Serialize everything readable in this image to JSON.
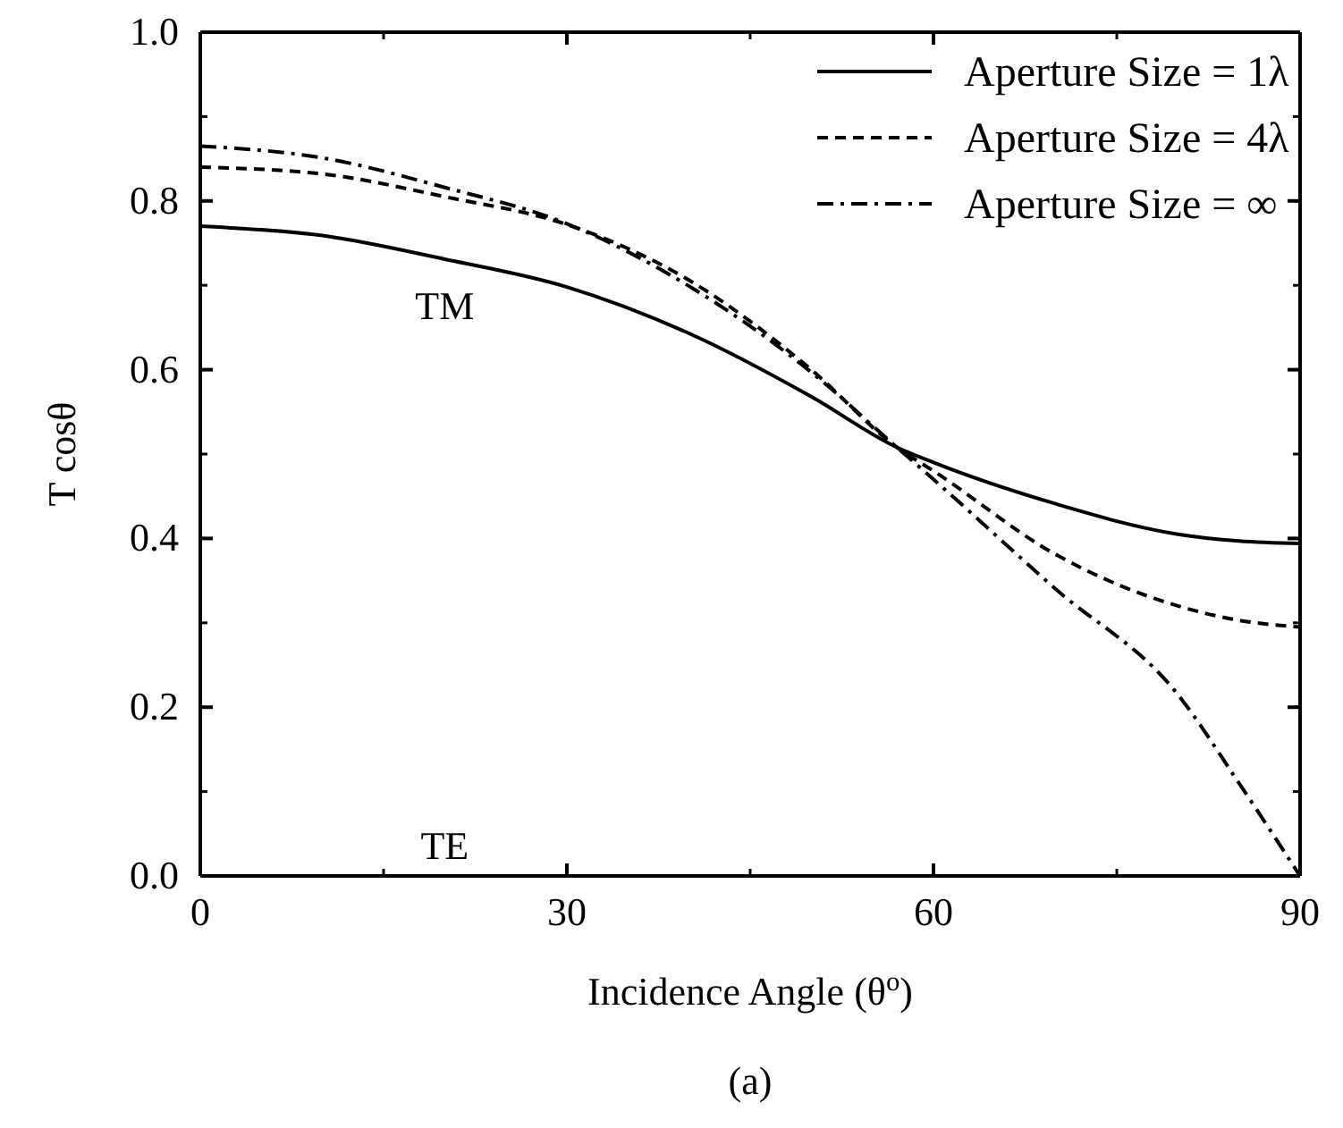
{
  "chart_data": {
    "type": "line",
    "xlabel": "Incidence Angle (θ$^{o}$)",
    "ylabel": "T cosθ",
    "x": [
      0,
      10,
      20,
      30,
      40,
      50,
      57,
      60,
      70,
      80,
      85,
      90
    ],
    "xlim": [
      0,
      90
    ],
    "xticks": [
      0,
      30,
      60,
      90
    ],
    "ylim": [
      0,
      1
    ],
    "yticks": [
      {
        "value": 0,
        "label": "0.0"
      },
      {
        "value": 0.2,
        "label": "0.2"
      },
      {
        "value": 0.4,
        "label": "0.4"
      },
      {
        "value": 0.6,
        "label": "0.6"
      },
      {
        "value": 0.8,
        "label": "0.8"
      },
      {
        "value": 1,
        "label": "1.0"
      }
    ],
    "grid": false,
    "legend": "top right",
    "marker": "none",
    "series": [
      {
        "name": "Aperture Size = 1λ",
        "color": "#000000",
        "line_style": "solid",
        "values": [
          0.77,
          0.759,
          0.731,
          0.698,
          0.643,
          0.568,
          0.508,
          0.49,
          0.441,
          0.405,
          0.397,
          0.394
        ]
      },
      {
        "name": "Aperture Size = 4λ",
        "color": "#000000",
        "line_style": "dashed",
        "values": [
          0.84,
          0.832,
          0.805,
          0.772,
          0.706,
          0.6,
          0.508,
          0.48,
          0.381,
          0.32,
          0.303,
          0.295
        ]
      },
      {
        "name": "Aperture Size = ∞",
        "color": "#000000",
        "line_style": "dashdot",
        "values": [
          0.865,
          0.851,
          0.816,
          0.773,
          0.699,
          0.597,
          0.508,
          0.47,
          0.34,
          0.215,
          0.11,
          0
        ]
      }
    ],
    "annotations": [
      "TM",
      "TE",
      "(a)"
    ]
  }
}
